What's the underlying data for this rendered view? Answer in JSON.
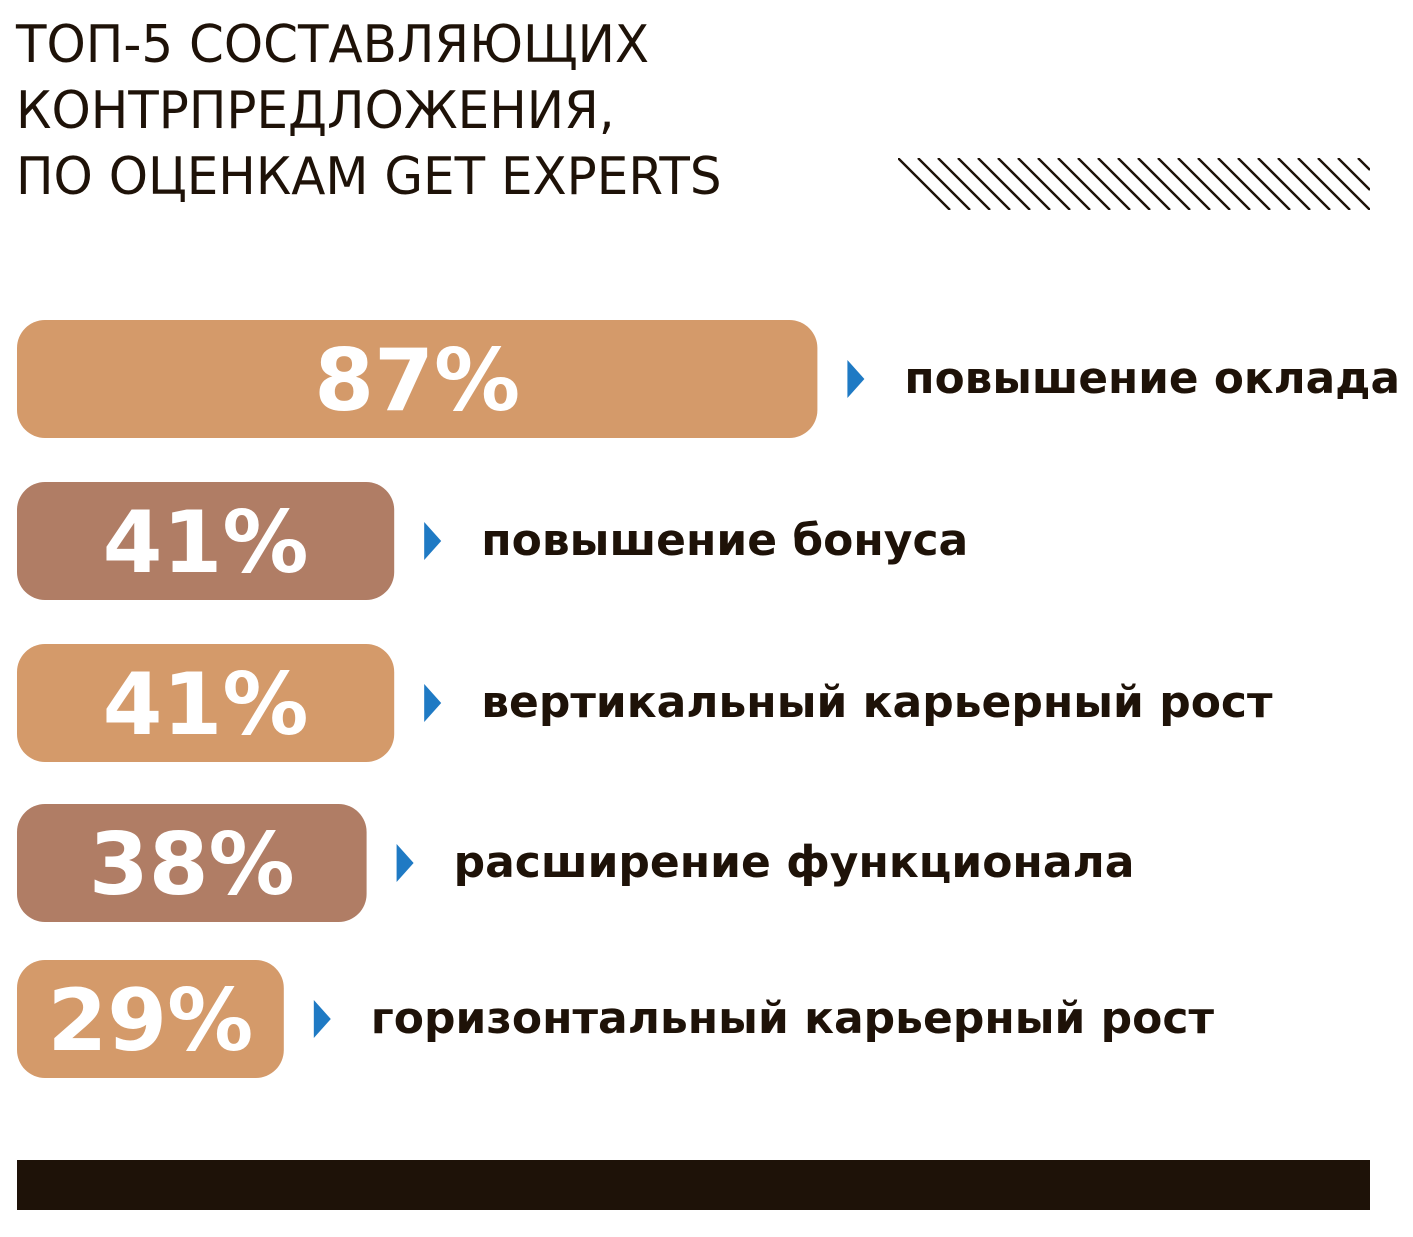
{
  "chart_data": {
    "type": "bar",
    "orientation": "horizontal",
    "title_lines": [
      "ТОП-5 СОСТАВЛЯЮЩИХ",
      "КОНТРПРЕДЛОЖЕНИЯ,",
      "ПО ОЦЕНКАМ GET EXPERTS"
    ],
    "categories": [
      "повышение оклада",
      "повышение бонуса",
      "вертикальный карьерный рост",
      "расширение функционала",
      "горизонтальный карьерный рост"
    ],
    "values": [
      87,
      41,
      41,
      38,
      29
    ],
    "value_labels": [
      "87%",
      "41%",
      "41%",
      "38%",
      "29%"
    ],
    "unit": "%",
    "bar_colors": [
      "#d49a6a",
      "#b07d65",
      "#d49a6a",
      "#b07d65",
      "#d49a6a"
    ],
    "marker_color": "#1f7ac4",
    "text_color": "#1e1208",
    "grid": false,
    "legend": "none"
  }
}
